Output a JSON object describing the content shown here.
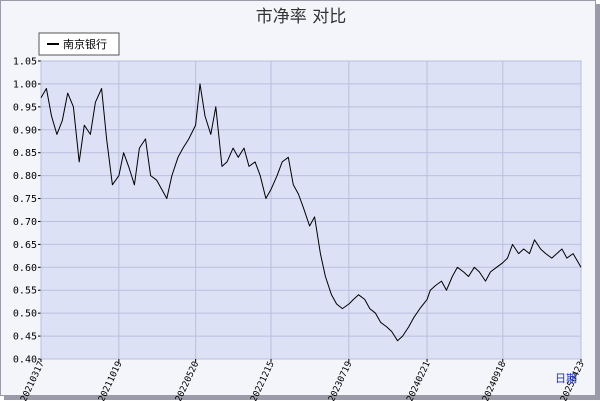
{
  "chart_data": {
    "type": "line",
    "title": "市净率  对比",
    "xlabel": "",
    "xlabel_unit": "日期",
    "ylabel": "",
    "ylim": [
      0.4,
      1.05
    ],
    "yticks": [
      "0.40",
      "0.45",
      "0.50",
      "0.55",
      "0.60",
      "0.65",
      "0.70",
      "0.75",
      "0.80",
      "0.85",
      "0.90",
      "0.95",
      "1.00",
      "1.05"
    ],
    "xticks": [
      "20210317",
      "20211019",
      "20220520",
      "20221215",
      "20230719",
      "20240221",
      "20240918",
      "20250423"
    ],
    "grid": true,
    "legend_position": "top-left",
    "colors": {
      "plot_bg": "#dde1f6",
      "line": "#000000",
      "grid": "#b9bfde",
      "frame_bg": "#f4f5fb"
    },
    "series": [
      {
        "name": "南京银行",
        "x": [
          "20210317",
          "20210401",
          "20210415",
          "20210430",
          "20210515",
          "20210530",
          "20210615",
          "20210701",
          "20210715",
          "20210801",
          "20210815",
          "20210901",
          "20210915",
          "20211001",
          "20211019",
          "20211101",
          "20211115",
          "20211201",
          "20211215",
          "20220101",
          "20220115",
          "20220201",
          "20220215",
          "20220301",
          "20220315",
          "20220401",
          "20220415",
          "20220501",
          "20220520",
          "20220601",
          "20220615",
          "20220701",
          "20220715",
          "20220801",
          "20220815",
          "20220901",
          "20220915",
          "20221001",
          "20221015",
          "20221101",
          "20221115",
          "20221201",
          "20221215",
          "20230101",
          "20230115",
          "20230201",
          "20230215",
          "20230301",
          "20230315",
          "20230401",
          "20230415",
          "20230501",
          "20230515",
          "20230601",
          "20230615",
          "20230701",
          "20230719",
          "20230801",
          "20230815",
          "20230901",
          "20230915",
          "20231001",
          "20231015",
          "20231101",
          "20231115",
          "20231201",
          "20231215",
          "20240101",
          "20240115",
          "20240201",
          "20240221",
          "20240301",
          "20240315",
          "20240401",
          "20240415",
          "20240501",
          "20240515",
          "20240601",
          "20240615",
          "20240701",
          "20240715",
          "20240801",
          "20240815",
          "20240901",
          "20240918",
          "20241001",
          "20241015",
          "20241101",
          "20241115",
          "20241201",
          "20241215",
          "20250101",
          "20250115",
          "20250201",
          "20250215",
          "20250301",
          "20250315",
          "20250401",
          "20250423"
        ],
        "values": [
          0.97,
          0.99,
          0.93,
          0.89,
          0.92,
          0.98,
          0.95,
          0.83,
          0.91,
          0.89,
          0.96,
          0.99,
          0.88,
          0.78,
          0.8,
          0.85,
          0.82,
          0.78,
          0.86,
          0.88,
          0.8,
          0.79,
          0.77,
          0.75,
          0.8,
          0.84,
          0.86,
          0.88,
          0.91,
          1.0,
          0.93,
          0.89,
          0.95,
          0.82,
          0.83,
          0.86,
          0.84,
          0.86,
          0.82,
          0.83,
          0.8,
          0.75,
          0.77,
          0.8,
          0.83,
          0.84,
          0.78,
          0.76,
          0.73,
          0.69,
          0.71,
          0.63,
          0.58,
          0.54,
          0.52,
          0.51,
          0.52,
          0.53,
          0.54,
          0.53,
          0.51,
          0.5,
          0.48,
          0.47,
          0.46,
          0.44,
          0.45,
          0.47,
          0.49,
          0.51,
          0.53,
          0.55,
          0.56,
          0.57,
          0.55,
          0.58,
          0.6,
          0.59,
          0.58,
          0.6,
          0.59,
          0.57,
          0.59,
          0.6,
          0.61,
          0.62,
          0.65,
          0.63,
          0.64,
          0.63,
          0.66,
          0.64,
          0.63,
          0.62,
          0.63,
          0.64,
          0.62,
          0.63,
          0.6
        ]
      }
    ]
  }
}
